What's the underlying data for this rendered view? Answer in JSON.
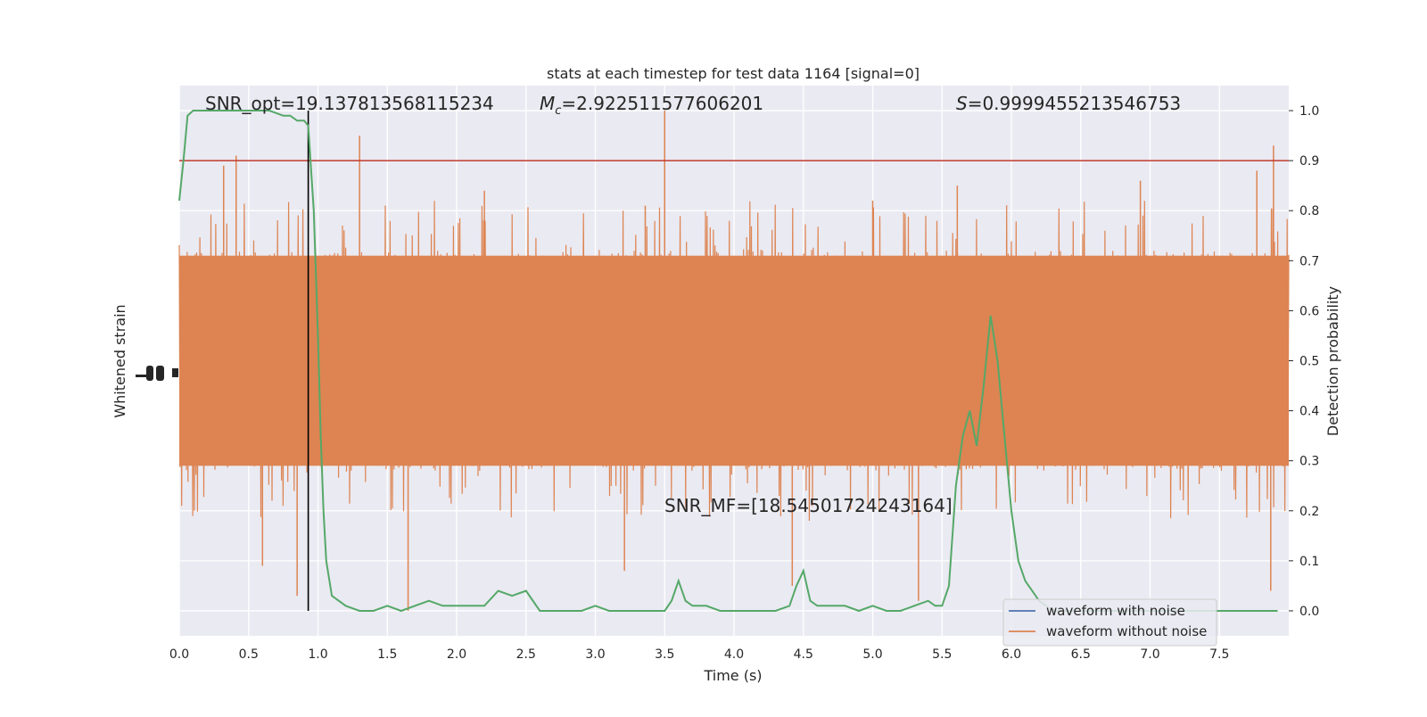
{
  "chart_data": {
    "type": "line",
    "title": "stats at each timestep for test data 1164 [signal=0]",
    "xlabel": "Time (s)",
    "ylabel_left": "Whitened strain",
    "ylabel_right": "Detection probability",
    "xlim": [
      0,
      8
    ],
    "ylim_right": [
      -0.05,
      1.05
    ],
    "x_ticks": [
      0.0,
      0.5,
      1.0,
      1.5,
      2.0,
      2.5,
      3.0,
      3.5,
      4.0,
      4.5,
      5.0,
      5.5,
      6.0,
      6.5,
      7.0,
      7.5
    ],
    "x_tick_labels": [
      "0.0",
      "0.5",
      "1.0",
      "1.5",
      "2.0",
      "2.5",
      "3.0",
      "3.5",
      "4.0",
      "4.5",
      "5.0",
      "5.5",
      "6.0",
      "6.5",
      "7.0",
      "7.5"
    ],
    "y_ticks_right": [
      0.0,
      0.1,
      0.2,
      0.3,
      0.4,
      0.5,
      0.6,
      0.7,
      0.8,
      0.9,
      1.0
    ],
    "y_tick_labels_right": [
      "0.0",
      "0.1",
      "0.2",
      "0.3",
      "0.4",
      "0.5",
      "0.6",
      "0.7",
      "0.8",
      "0.9",
      "1.0"
    ],
    "grid": true,
    "legend_position": "bottom-right",
    "annotations": {
      "snr_opt": "SNR_opt=19.137813568115234",
      "mc_symbol": "M",
      "mc_sub": "c",
      "mc_value": "=2.922511577606201",
      "s_symbol": "S",
      "s_value": "=0.9999455213546753",
      "snr_mf": "SNR_MF=[18.54501724243164]"
    },
    "threshold": {
      "value": 0.9,
      "color": "#c0392b"
    },
    "marker_time": 0.93,
    "series": [
      {
        "name": "waveform with noise",
        "color": "#4c72b0"
      },
      {
        "name": "waveform without noise",
        "color": "#dd8452",
        "band_low": 0.28,
        "band_high": 0.72,
        "peaks_high": [
          [
            0.32,
            0.89
          ],
          [
            0.41,
            0.91
          ],
          [
            1.3,
            0.95
          ],
          [
            2.2,
            0.84
          ],
          [
            3.5,
            1.0
          ],
          [
            3.36,
            0.81
          ],
          [
            5.61,
            0.85
          ],
          [
            7.89,
            0.93
          ],
          [
            7.77,
            0.88
          ],
          [
            6.93,
            0.86
          ],
          [
            5.0,
            0.82
          ]
        ],
        "peaks_low": [
          [
            0.85,
            0.03
          ],
          [
            1.65,
            0.0
          ],
          [
            3.21,
            0.08
          ],
          [
            4.42,
            0.05
          ],
          [
            5.33,
            0.02
          ],
          [
            7.87,
            0.04
          ],
          [
            0.6,
            0.09
          ]
        ]
      },
      {
        "name": "Detection probability",
        "color": "#55a868",
        "x": [
          0.0,
          0.03,
          0.06,
          0.1,
          0.15,
          0.25,
          0.35,
          0.45,
          0.55,
          0.65,
          0.75,
          0.8,
          0.85,
          0.9,
          0.93,
          0.97,
          1.0,
          1.02,
          1.04,
          1.06,
          1.1,
          1.2,
          1.3,
          1.4,
          1.5,
          1.6,
          1.7,
          1.8,
          1.9,
          2.0,
          2.1,
          2.2,
          2.3,
          2.4,
          2.5,
          2.6,
          2.7,
          2.8,
          2.9,
          3.0,
          3.1,
          3.2,
          3.3,
          3.4,
          3.5,
          3.55,
          3.6,
          3.65,
          3.7,
          3.8,
          3.9,
          4.0,
          4.1,
          4.2,
          4.3,
          4.4,
          4.45,
          4.5,
          4.55,
          4.6,
          4.7,
          4.8,
          4.9,
          5.0,
          5.1,
          5.2,
          5.3,
          5.4,
          5.45,
          5.5,
          5.55,
          5.6,
          5.65,
          5.7,
          5.75,
          5.8,
          5.85,
          5.9,
          5.95,
          6.0,
          6.05,
          6.1,
          6.2,
          6.3,
          6.4,
          6.5,
          6.6,
          6.7,
          6.8,
          6.9,
          7.0,
          7.1,
          7.2,
          7.3,
          7.4,
          7.5,
          7.6,
          7.7,
          7.8,
          7.92
        ],
        "y": [
          0.82,
          0.9,
          0.99,
          1.0,
          1.0,
          1.0,
          1.0,
          1.0,
          1.0,
          1.0,
          0.99,
          0.99,
          0.98,
          0.98,
          0.97,
          0.8,
          0.55,
          0.35,
          0.2,
          0.1,
          0.03,
          0.01,
          0.0,
          0.0,
          0.01,
          0.0,
          0.01,
          0.02,
          0.01,
          0.01,
          0.01,
          0.01,
          0.04,
          0.03,
          0.04,
          0.0,
          0.0,
          0.0,
          0.0,
          0.01,
          0.0,
          0.0,
          0.0,
          0.0,
          0.0,
          0.02,
          0.06,
          0.02,
          0.01,
          0.01,
          0.0,
          0.0,
          0.0,
          0.0,
          0.0,
          0.01,
          0.05,
          0.08,
          0.02,
          0.01,
          0.01,
          0.01,
          0.0,
          0.01,
          0.0,
          0.0,
          0.01,
          0.02,
          0.01,
          0.01,
          0.05,
          0.25,
          0.35,
          0.4,
          0.33,
          0.45,
          0.59,
          0.5,
          0.35,
          0.2,
          0.1,
          0.06,
          0.02,
          0.0,
          0.0,
          0.0,
          0.0,
          0.0,
          0.0,
          0.0,
          0.0,
          0.0,
          0.0,
          0.0,
          0.0,
          0.0,
          0.0,
          0.0,
          0.0,
          0.0
        ]
      }
    ]
  }
}
